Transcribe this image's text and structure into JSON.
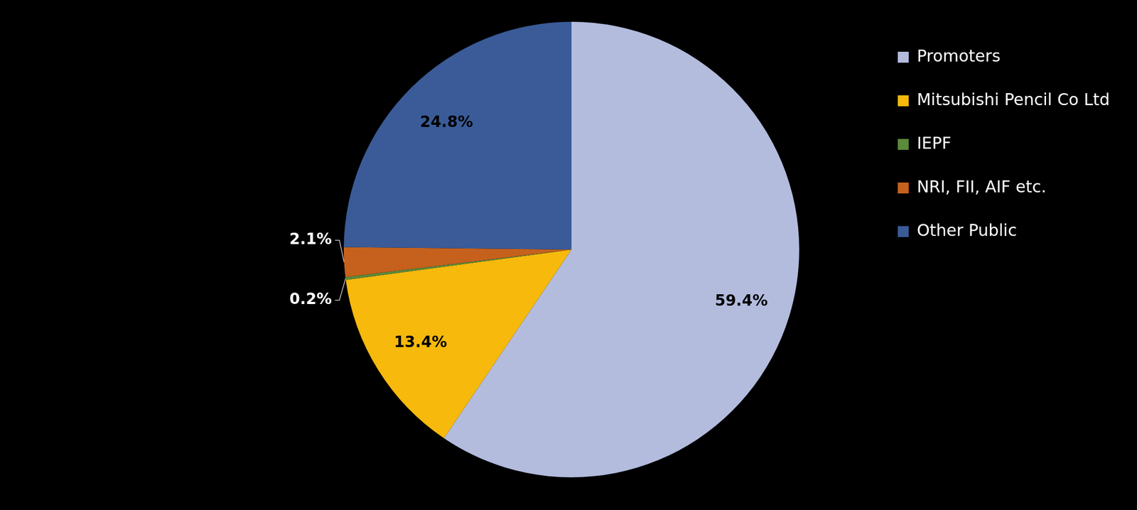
{
  "chart_data": {
    "type": "pie",
    "categories": [
      "Promoters",
      "Mitsubishi Pencil Co Ltd",
      "IEPF",
      "NRI, FII, AIF etc.",
      "Other Public"
    ],
    "values": [
      59.4,
      13.4,
      0.2,
      2.1,
      24.8
    ],
    "value_labels": [
      "59.4%",
      "13.4%",
      "0.2%",
      "2.1%",
      "24.8%"
    ],
    "colors": [
      "#b3bcdd",
      "#f6b90c",
      "#5a8a3a",
      "#c6611d",
      "#3a5b98"
    ],
    "legend": "top-right",
    "data_labels": true
  }
}
